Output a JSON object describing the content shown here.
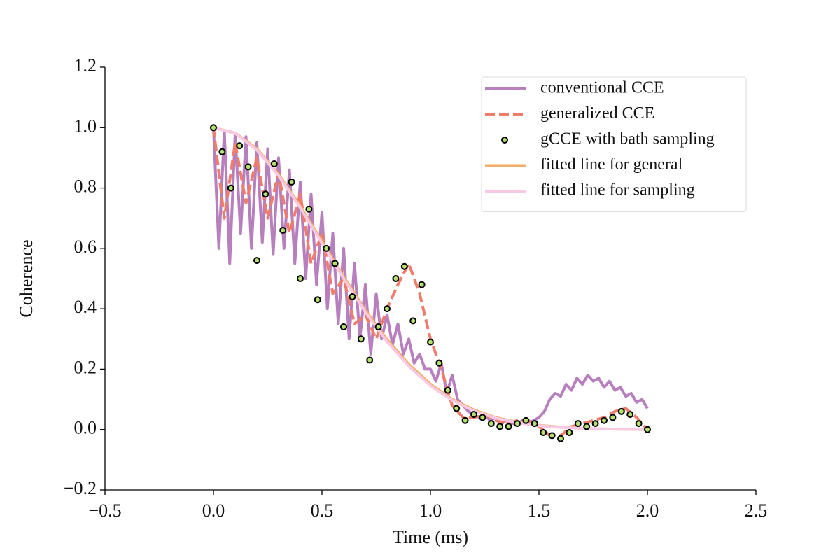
{
  "chart_data": {
    "type": "line",
    "xlabel": "Time (ms)",
    "ylabel": "Coherence",
    "xlim": [
      -0.5,
      2.5
    ],
    "ylim": [
      -0.2,
      1.2
    ],
    "xticks": [
      {
        "value": -0.5,
        "label": "−0.5"
      },
      {
        "value": 0,
        "label": "0.0"
      },
      0.5,
      {
        "value": 1,
        "label": "1.0"
      },
      1.5,
      {
        "value": 2,
        "label": "2.0"
      },
      2.5
    ],
    "yticks": [
      {
        "value": -0.2,
        "label": "−0.2"
      },
      {
        "value": 0,
        "label": "0.0"
      },
      0.2,
      0.4,
      0.6,
      0.8,
      {
        "value": 1,
        "label": "1.0"
      },
      1.2
    ],
    "legend": "upper right",
    "series": [
      {
        "name": "conventional CCE",
        "type": "line",
        "color": "#b77fbd",
        "linestyle": "solid",
        "x": [
          0,
          0.025,
          0.05,
          0.075,
          0.1,
          0.125,
          0.15,
          0.175,
          0.2,
          0.225,
          0.25,
          0.275,
          0.3,
          0.325,
          0.35,
          0.375,
          0.4,
          0.425,
          0.45,
          0.475,
          0.5,
          0.525,
          0.55,
          0.575,
          0.6,
          0.625,
          0.65,
          0.675,
          0.7,
          0.725,
          0.75,
          0.775,
          0.8,
          0.825,
          0.85,
          0.875,
          0.9,
          0.925,
          0.95,
          0.975,
          1.0,
          1.025,
          1.05,
          1.075,
          1.1,
          1.125,
          1.15,
          1.175,
          1.2,
          1.225,
          1.25,
          1.275,
          1.3,
          1.325,
          1.35,
          1.375,
          1.4,
          1.425,
          1.45,
          1.475,
          1.5,
          1.525,
          1.55,
          1.575,
          1.6,
          1.625,
          1.65,
          1.675,
          1.7,
          1.725,
          1.75,
          1.775,
          1.8,
          1.825,
          1.85,
          1.875,
          1.9,
          1.925,
          1.95,
          1.975,
          2.0
        ],
        "values": [
          1.0,
          0.6,
          0.99,
          0.55,
          0.98,
          0.65,
          0.97,
          0.6,
          0.95,
          0.62,
          0.93,
          0.58,
          0.9,
          0.6,
          0.86,
          0.55,
          0.82,
          0.5,
          0.78,
          0.48,
          0.72,
          0.4,
          0.65,
          0.35,
          0.6,
          0.3,
          0.55,
          0.3,
          0.48,
          0.25,
          0.45,
          0.3,
          0.38,
          0.28,
          0.35,
          0.25,
          0.3,
          0.22,
          0.25,
          0.2,
          0.2,
          0.16,
          0.22,
          0.12,
          0.18,
          0.1,
          0.08,
          0.06,
          0.05,
          0.04,
          0.05,
          0.03,
          0.04,
          0.02,
          0.03,
          0.02,
          0.02,
          0.03,
          0.02,
          0.03,
          0.04,
          0.06,
          0.1,
          0.12,
          0.11,
          0.15,
          0.13,
          0.17,
          0.15,
          0.18,
          0.16,
          0.17,
          0.14,
          0.16,
          0.13,
          0.14,
          0.11,
          0.12,
          0.09,
          0.1,
          0.07
        ]
      },
      {
        "name": "generalized CCE",
        "type": "line",
        "color": "#f07c6c",
        "linestyle": "dashed",
        "x": [
          0,
          0.05,
          0.1,
          0.15,
          0.2,
          0.25,
          0.3,
          0.35,
          0.4,
          0.45,
          0.5,
          0.55,
          0.6,
          0.65,
          0.7,
          0.75,
          0.8,
          0.85,
          0.9,
          0.95,
          1.0,
          1.05,
          1.1,
          1.15,
          1.2,
          1.25,
          1.3,
          1.35,
          1.4,
          1.45,
          1.5,
          1.55,
          1.6,
          1.65,
          1.7,
          1.75,
          1.8,
          1.85,
          1.9,
          1.95,
          2.0
        ],
        "values": [
          1.0,
          0.7,
          0.95,
          0.75,
          0.9,
          0.7,
          0.85,
          0.65,
          0.78,
          0.55,
          0.65,
          0.45,
          0.5,
          0.35,
          0.38,
          0.3,
          0.4,
          0.48,
          0.55,
          0.45,
          0.3,
          0.2,
          0.08,
          0.04,
          0.04,
          0.05,
          0.03,
          0.02,
          0.03,
          0.03,
          0.01,
          -0.02,
          -0.02,
          0.01,
          0.02,
          0.03,
          0.04,
          0.06,
          0.07,
          0.04,
          0.0
        ]
      },
      {
        "name": "gCCE with bath sampling",
        "type": "scatter",
        "color": "#b5e06e",
        "edgecolor": "#000000",
        "x": [
          0,
          0.04,
          0.08,
          0.12,
          0.16,
          0.2,
          0.24,
          0.28,
          0.32,
          0.36,
          0.4,
          0.44,
          0.48,
          0.52,
          0.56,
          0.6,
          0.64,
          0.68,
          0.72,
          0.76,
          0.8,
          0.84,
          0.88,
          0.92,
          0.96,
          1.0,
          1.04,
          1.08,
          1.12,
          1.16,
          1.2,
          1.24,
          1.28,
          1.32,
          1.36,
          1.4,
          1.44,
          1.48,
          1.52,
          1.56,
          1.6,
          1.64,
          1.68,
          1.72,
          1.76,
          1.8,
          1.84,
          1.88,
          1.92,
          1.96,
          2.0
        ],
        "values": [
          1.0,
          0.92,
          0.8,
          0.94,
          0.87,
          0.56,
          0.78,
          0.88,
          0.66,
          0.82,
          0.5,
          0.73,
          0.43,
          0.6,
          0.55,
          0.34,
          0.44,
          0.3,
          0.23,
          0.34,
          0.4,
          0.5,
          0.54,
          0.36,
          0.48,
          0.29,
          0.22,
          0.13,
          0.07,
          0.03,
          0.05,
          0.04,
          0.02,
          0.01,
          0.01,
          0.02,
          0.03,
          0.02,
          -0.01,
          -0.02,
          -0.03,
          -0.01,
          0.02,
          0.01,
          0.02,
          0.03,
          0.04,
          0.06,
          0.05,
          0.02,
          0.0
        ]
      },
      {
        "name": "fitted line for general",
        "type": "line",
        "color": "#f2ad66",
        "linestyle": "solid",
        "x": [
          0,
          0.1,
          0.2,
          0.3,
          0.4,
          0.5,
          0.6,
          0.7,
          0.8,
          0.9,
          1.0,
          1.1,
          1.2,
          1.3,
          1.4,
          1.5,
          1.6,
          1.7,
          1.8,
          1.9,
          2.0
        ],
        "values": [
          1.0,
          0.982,
          0.93,
          0.845,
          0.74,
          0.623,
          0.506,
          0.395,
          0.298,
          0.216,
          0.15,
          0.1,
          0.065,
          0.04,
          0.024,
          0.014,
          0.008,
          0.004,
          0.002,
          0.001,
          0.0
        ]
      },
      {
        "name": "fitted line for sampling",
        "type": "line",
        "color": "#f9c9e3",
        "linestyle": "solid",
        "x": [
          0,
          0.1,
          0.2,
          0.3,
          0.4,
          0.5,
          0.6,
          0.7,
          0.8,
          0.9,
          1.0,
          1.1,
          1.2,
          1.3,
          1.4,
          1.5,
          1.6,
          1.7,
          1.8,
          1.9,
          2.0
        ],
        "values": [
          1.0,
          0.981,
          0.926,
          0.841,
          0.735,
          0.617,
          0.5,
          0.389,
          0.291,
          0.21,
          0.145,
          0.097,
          0.062,
          0.038,
          0.023,
          0.013,
          0.007,
          0.004,
          0.002,
          0.001,
          0.0
        ]
      }
    ]
  }
}
